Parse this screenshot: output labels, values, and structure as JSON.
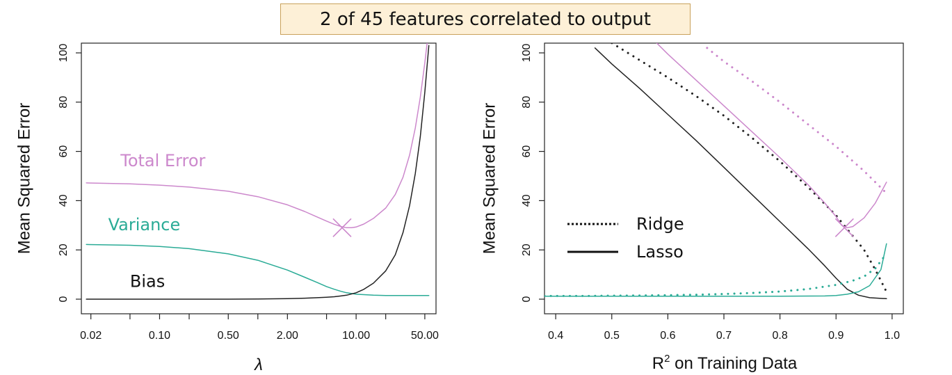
{
  "banner": {
    "text": "2 of 45 features correlated to output"
  },
  "colors": {
    "total": "#cc88cc",
    "variance": "#2aab96",
    "bias": "#222222",
    "frame": "#222222"
  },
  "chart_data": [
    {
      "type": "line",
      "xscale": "log",
      "xlabel": "λ",
      "ylabel": "Mean Squared Error",
      "xlim": [
        0.016,
        65
      ],
      "ylim": [
        0,
        100
      ],
      "xticks": [
        0.02,
        0.05,
        0.1,
        0.2,
        0.5,
        1.0,
        2.0,
        5.0,
        10.0,
        20.0,
        50.0
      ],
      "xtick_labels": [
        "0.02",
        "0.10",
        "0.50",
        "2.00",
        "10.00",
        "50.00"
      ],
      "xtick_label_values": [
        0.02,
        0.1,
        0.5,
        2.0,
        10.0,
        50.0
      ],
      "yticks": [
        0,
        20,
        40,
        60,
        80,
        100
      ],
      "ytick_labels": [
        "0",
        "20",
        "40",
        "60",
        "80",
        "100"
      ],
      "grid": false,
      "series": [
        {
          "name": "Total Error",
          "color": "#cc88cc",
          "style": "solid",
          "x": [
            0.018,
            0.05,
            0.1,
            0.2,
            0.5,
            1.0,
            2.0,
            3.0,
            4.0,
            5.0,
            6.0,
            7.0,
            8.0,
            9.0,
            10.0,
            12.0,
            15.0,
            20.0,
            25.0,
            30.0,
            35.0,
            40.0,
            45.0,
            50.0,
            55.0
          ],
          "y": [
            47.2,
            46.8,
            46.3,
            45.5,
            43.8,
            41.6,
            38.3,
            35.6,
            33.4,
            31.7,
            30.4,
            29.5,
            29.0,
            29.0,
            29.3,
            30.5,
            32.8,
            37.0,
            42.5,
            49.5,
            58.5,
            69.5,
            82.0,
            96.0,
            110
          ]
        },
        {
          "name": "Variance",
          "color": "#2aab96",
          "style": "solid",
          "x": [
            0.018,
            0.05,
            0.1,
            0.2,
            0.5,
            1.0,
            2.0,
            3.0,
            4.0,
            5.0,
            6.0,
            7.0,
            8.0,
            10.0,
            15.0,
            20.0,
            30.0,
            40.0,
            50.0,
            55.0
          ],
          "y": [
            22.2,
            21.9,
            21.4,
            20.5,
            18.4,
            15.8,
            11.8,
            8.9,
            6.8,
            5.1,
            4.0,
            3.2,
            2.6,
            2.0,
            1.6,
            1.5,
            1.5,
            1.5,
            1.5,
            1.5
          ]
        },
        {
          "name": "Bias",
          "color": "#222222",
          "style": "solid",
          "x": [
            0.018,
            0.1,
            0.5,
            1.0,
            2.0,
            3.0,
            4.0,
            5.0,
            6.0,
            7.0,
            8.0,
            10.0,
            12.0,
            15.0,
            20.0,
            25.0,
            30.0,
            35.0,
            40.0,
            45.0,
            50.0,
            55.0
          ],
          "y": [
            0,
            0,
            0,
            0.05,
            0.2,
            0.4,
            0.6,
            0.8,
            1.0,
            1.3,
            1.6,
            2.6,
            4.0,
            6.5,
            11.5,
            18.0,
            27.0,
            38.0,
            51.0,
            66.0,
            84.0,
            103
          ]
        }
      ],
      "labels": [
        {
          "text": "Total Error",
          "x": 0.04,
          "y": 54,
          "color": "#cc88cc"
        },
        {
          "text": "Variance",
          "x": 0.03,
          "y": 28,
          "color": "#2aab96"
        },
        {
          "text": "Bias",
          "x": 0.05,
          "y": 5,
          "color": "#111111"
        }
      ],
      "minimum_marker": {
        "x": 7.2,
        "y": 29,
        "color": "#cc88cc"
      }
    },
    {
      "type": "line",
      "xlabel": "R",
      "xlabel_superscript": "2",
      "xlabel_suffix": " on Training Data",
      "ylabel": "Mean Squared Error",
      "xlim": [
        0.38,
        1.02
      ],
      "ylim": [
        0,
        100
      ],
      "xticks": [
        0.4,
        0.5,
        0.6,
        0.7,
        0.8,
        0.9,
        1.0
      ],
      "xtick_labels": [
        "0.4",
        "0.5",
        "0.6",
        "0.7",
        "0.8",
        "0.9",
        "1.0"
      ],
      "yticks": [
        0,
        20,
        40,
        60,
        80,
        100
      ],
      "ytick_labels": [
        "0",
        "20",
        "40",
        "60",
        "80",
        "100"
      ],
      "grid": false,
      "legend": {
        "position": "left-middle",
        "entries": [
          {
            "label": "Ridge",
            "style": "dotted"
          },
          {
            "label": "Lasso",
            "style": "solid"
          }
        ]
      },
      "series": [
        {
          "name": "Ridge",
          "group": "bias",
          "color": "#222222",
          "style": "dotted",
          "x": [
            0.5,
            0.55,
            0.6,
            0.65,
            0.7,
            0.75,
            0.8,
            0.85,
            0.9,
            0.95,
            0.97,
            0.99
          ],
          "y": [
            104,
            97,
            90,
            82.5,
            74.5,
            65.5,
            56,
            45.5,
            34,
            20,
            12,
            3
          ]
        },
        {
          "name": "Lasso",
          "group": "bias",
          "color": "#222222",
          "style": "solid",
          "x": [
            0.47,
            0.5,
            0.55,
            0.6,
            0.65,
            0.7,
            0.75,
            0.8,
            0.85,
            0.88,
            0.9,
            0.92,
            0.94,
            0.96,
            0.99
          ],
          "y": [
            102,
            95.5,
            85.5,
            75,
            64.5,
            53.5,
            42.5,
            31.5,
            20.5,
            13.5,
            8.5,
            4,
            1.6,
            0.6,
            0.2
          ]
        },
        {
          "name": "Ridge",
          "group": "total",
          "color": "#cc88cc",
          "style": "dotted",
          "x": [
            0.67,
            0.7,
            0.75,
            0.8,
            0.85,
            0.9,
            0.95,
            0.99
          ],
          "y": [
            102,
            96.5,
            88.5,
            80,
            71,
            62,
            52,
            43
          ]
        },
        {
          "name": "Lasso",
          "group": "total",
          "color": "#cc88cc",
          "style": "solid",
          "x": [
            0.58,
            0.6,
            0.65,
            0.7,
            0.75,
            0.8,
            0.85,
            0.88,
            0.9,
            0.91,
            0.92,
            0.93,
            0.95,
            0.97,
            0.99
          ],
          "y": [
            104,
            99.5,
            89,
            78.5,
            68,
            57.5,
            46.5,
            39,
            33.5,
            30,
            29,
            29.5,
            33,
            39,
            47.5
          ]
        },
        {
          "name": "Ridge",
          "group": "variance",
          "color": "#2aab96",
          "style": "dotted",
          "x": [
            0.38,
            0.45,
            0.5,
            0.55,
            0.6,
            0.65,
            0.7,
            0.75,
            0.8,
            0.85,
            0.9,
            0.93,
            0.95,
            0.97,
            0.99
          ],
          "y": [
            1.3,
            1.3,
            1.4,
            1.5,
            1.6,
            1.8,
            2.1,
            2.5,
            3.1,
            4.1,
            5.8,
            7.5,
            9.2,
            12.5,
            18.5
          ]
        },
        {
          "name": "Lasso",
          "group": "variance",
          "color": "#2aab96",
          "style": "solid",
          "x": [
            0.38,
            0.5,
            0.6,
            0.7,
            0.8,
            0.88,
            0.9,
            0.92,
            0.94,
            0.96,
            0.98,
            0.99
          ],
          "y": [
            1.2,
            1.2,
            1.2,
            1.2,
            1.2,
            1.3,
            1.5,
            2.0,
            3.0,
            5.5,
            12.0,
            22.5
          ]
        }
      ],
      "minimum_marker": {
        "x": 0.915,
        "y": 29,
        "color": "#cc88cc"
      }
    }
  ]
}
